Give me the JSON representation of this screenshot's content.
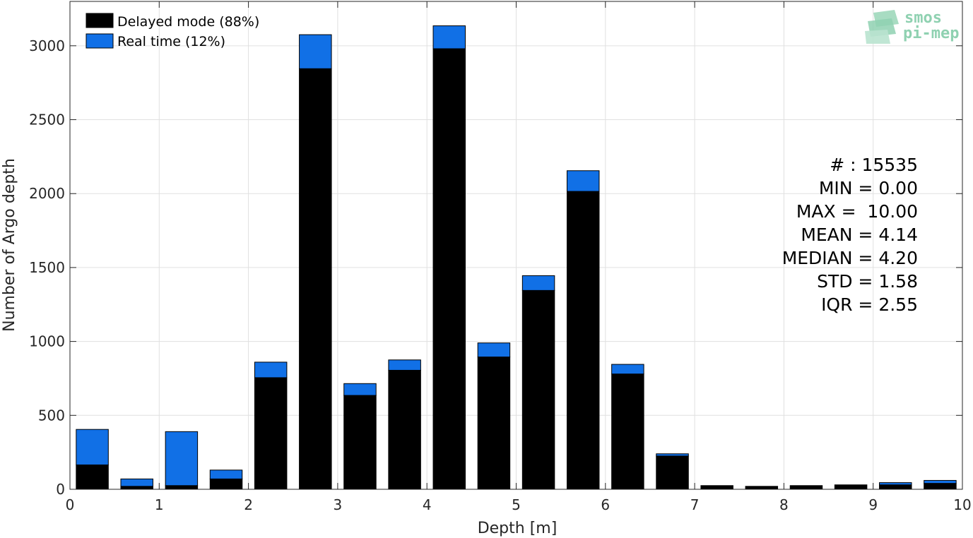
{
  "chart_data": {
    "type": "bar",
    "stacked": true,
    "xlabel": "Depth [m]",
    "ylabel": "Number of Argo depth",
    "xlim": [
      0,
      10
    ],
    "ylim": [
      0,
      3300
    ],
    "xticks": [
      0,
      1,
      2,
      3,
      4,
      5,
      6,
      7,
      8,
      9,
      10
    ],
    "yticks": [
      0,
      500,
      1000,
      1500,
      2000,
      2500,
      3000
    ],
    "grid": true,
    "legend_position": "top-left",
    "bar_centers": [
      0.25,
      0.75,
      1.25,
      1.75,
      2.25,
      2.75,
      3.25,
      3.75,
      4.25,
      4.75,
      5.25,
      5.75,
      6.25,
      6.75,
      7.25,
      7.75,
      8.25,
      8.75,
      9.25,
      9.75
    ],
    "bar_width": 0.36,
    "series": [
      {
        "name": "Delayed mode (88%)",
        "color": "#000000",
        "values": [
          165,
          20,
          25,
          70,
          755,
          2845,
          635,
          805,
          2980,
          895,
          1345,
          2015,
          780,
          225,
          25,
          20,
          25,
          30,
          30,
          40
        ]
      },
      {
        "name": "Real time (12%)",
        "color": "#1170e6",
        "values": [
          240,
          50,
          365,
          60,
          105,
          230,
          80,
          70,
          155,
          95,
          100,
          140,
          65,
          15,
          0,
          0,
          0,
          0,
          15,
          20
        ]
      }
    ],
    "stats": [
      "# : 15535",
      "MIN = 0.00",
      "MAX =  10.00",
      "MEAN = 4.14",
      "MEDIAN = 4.20",
      "STD = 1.58",
      "IQR = 2.55"
    ]
  },
  "logo": {
    "line1": "smos",
    "line2": "pi-mep",
    "color": "#8fd1b1"
  }
}
